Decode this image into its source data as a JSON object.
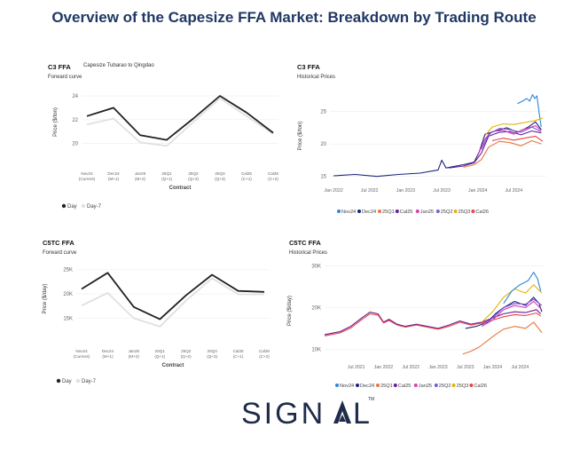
{
  "page_title": "Overview of the Capesize FFA Market: Breakdown by Trading Route",
  "logo": {
    "text": "SIGN",
    "text2": "L",
    "trademark": "TM"
  },
  "colors": {
    "title": "#1f3864",
    "day": "#222222",
    "day7": "#e0e0e0",
    "Nov24": "#2f86d9",
    "Dec24": "#1a237e",
    "25Q1": "#e8763a",
    "Cal25": "#6a1b9a",
    "Jan25": "#d63fb5",
    "25Q2": "#7b5ad6",
    "25Q3": "#e0b400",
    "Cal26": "#e64545"
  },
  "chart_data": [
    {
      "id": "c3-forward",
      "type": "line",
      "title": "C3 FFA",
      "subtitle": "Forward curve",
      "annotation": "Capesize Tubarao to Qingdao",
      "xlabel": "Contract",
      "ylabel": "Price ($/ton)",
      "ylim": [
        19,
        24.6
      ],
      "yticks": [
        20,
        22,
        24
      ],
      "ytick_labels": [
        "20",
        "22",
        "24"
      ],
      "categories": [
        "Nov24 (Current)",
        "Dec24 (M+1)",
        "Jan25 (M+2)",
        "25Q1 (Q+1)",
        "25Q2 (Q+2)",
        "25Q3 (Q+3)",
        "Cal25 (C+1)",
        "Cal26 (C+2)"
      ],
      "cat_line1": [
        "Nov24",
        "Dec24",
        "Jan25",
        "25Q1",
        "25Q2",
        "25Q3",
        "Cal25",
        "Cal26"
      ],
      "cat_line2": [
        "(Current)",
        "(M+1)",
        "(M+2)",
        "(Q+1)",
        "(Q+2)",
        "(Q+3)",
        "(C+1)",
        "(C+2)"
      ],
      "series": [
        {
          "name": "Day",
          "values": [
            22.3,
            23.0,
            20.7,
            20.3,
            22.1,
            24.0,
            22.6,
            20.9
          ]
        },
        {
          "name": "Day-7",
          "values": [
            21.6,
            22.1,
            20.1,
            19.8,
            21.8,
            23.8,
            22.3,
            20.8
          ]
        }
      ],
      "legend": [
        "Day",
        "Day-7"
      ]
    },
    {
      "id": "c3-hist",
      "type": "line",
      "title": "C3 FFA",
      "subtitle": "Historical Prices",
      "xlabel": "",
      "ylabel": "Price ($/ton)",
      "xlim": [
        2021.95,
        2024.95
      ],
      "ylim": [
        14,
        28.5
      ],
      "yticks": [
        15,
        20,
        25
      ],
      "ytick_labels": [
        "15",
        "20",
        "25"
      ],
      "xticks": [
        2022.0,
        2022.5,
        2023.0,
        2023.5,
        2024.0,
        2024.5
      ],
      "xtick_labels": [
        "Jan 2022",
        "Jul 2022",
        "Jan 2023",
        "Jul 2023",
        "Jan 2024",
        "Jul 2024"
      ],
      "series": [
        {
          "name": "Nov24",
          "x": [
            2024.55,
            2024.62,
            2024.68,
            2024.72,
            2024.76,
            2024.79,
            2024.82,
            2024.85,
            2024.88
          ],
          "values": [
            26.2,
            26.6,
            27.0,
            26.6,
            27.6,
            27.0,
            27.4,
            24.8,
            22.6
          ]
        },
        {
          "name": "Dec24",
          "x": [
            2022.0,
            2022.3,
            2022.6,
            2022.9,
            2023.2,
            2023.45,
            2023.5,
            2023.56,
            2023.8,
            2023.95,
            2024.02,
            2024.1,
            2024.25,
            2024.4,
            2024.55,
            2024.7,
            2024.8,
            2024.88
          ],
          "values": [
            15.1,
            15.3,
            15.0,
            15.3,
            15.5,
            16.0,
            17.5,
            16.3,
            16.8,
            17.2,
            18.8,
            21.5,
            22.0,
            22.5,
            21.8,
            22.6,
            23.4,
            22.2
          ]
        },
        {
          "name": "25Q1",
          "x": [
            2023.8,
            2023.95,
            2024.05,
            2024.15,
            2024.3,
            2024.45,
            2024.6,
            2024.75,
            2024.88
          ],
          "values": [
            16.4,
            16.8,
            17.6,
            19.5,
            20.4,
            20.2,
            19.7,
            20.5,
            20.0
          ]
        },
        {
          "name": "Cal25",
          "x": [
            2023.6,
            2023.8,
            2023.95,
            2024.05,
            2024.15,
            2024.3,
            2024.45,
            2024.6,
            2024.75,
            2024.88
          ],
          "values": [
            16.3,
            16.6,
            17.1,
            18.6,
            21.2,
            21.8,
            21.9,
            21.4,
            22.0,
            21.7
          ]
        },
        {
          "name": "Jan25",
          "x": [
            2024.0,
            2024.1,
            2024.2,
            2024.35,
            2024.5,
            2024.65,
            2024.8,
            2024.88
          ],
          "values": [
            18.2,
            20.8,
            21.9,
            22.1,
            21.5,
            22.3,
            22.8,
            22.1
          ]
        },
        {
          "name": "25Q2",
          "x": [
            2024.05,
            2024.15,
            2024.3,
            2024.45,
            2024.6,
            2024.75,
            2024.88
          ],
          "values": [
            19.2,
            21.5,
            22.4,
            22.2,
            21.8,
            22.6,
            21.9
          ]
        },
        {
          "name": "25Q3",
          "x": [
            2024.1,
            2024.2,
            2024.35,
            2024.5,
            2024.65,
            2024.8,
            2024.9
          ],
          "values": [
            21.3,
            22.6,
            23.1,
            23.0,
            23.3,
            23.6,
            24.0
          ]
        },
        {
          "name": "Cal26",
          "x": [
            2024.2,
            2024.35,
            2024.5,
            2024.65,
            2024.8,
            2024.9
          ],
          "values": [
            20.5,
            20.9,
            20.6,
            20.9,
            21.2,
            20.4
          ]
        }
      ],
      "legend": [
        "Nov24",
        "Dec24",
        "25Q1",
        "Cal25",
        "Jan25",
        "25Q2",
        "25Q3",
        "Cal26"
      ]
    },
    {
      "id": "c5tc-forward",
      "type": "line",
      "title": "C5TC FFA",
      "subtitle": "Forward curve",
      "xlabel": "Contract",
      "ylabel": "Price ($/day)",
      "ylim": [
        12000,
        26000
      ],
      "yticks": [
        15000,
        20000,
        25000
      ],
      "ytick_labels": [
        "15K",
        "20K",
        "25K"
      ],
      "categories": [
        "Nov24 (Current)",
        "Dec24 (M+1)",
        "Jan25 (M+2)",
        "25Q1 (Q+1)",
        "25Q2 (Q+2)",
        "25Q3 (Q+3)",
        "Cal25 (C+1)",
        "Cal26 (C+2)"
      ],
      "cat_line1": [
        "Nov24",
        "Dec24",
        "Jan25",
        "25Q1",
        "25Q2",
        "25Q3",
        "Cal25",
        "Cal26"
      ],
      "cat_line2": [
        "(Current)",
        "(M+1)",
        "(M+2)",
        "(Q+1)",
        "(Q+2)",
        "(Q+3)",
        "(C+1)",
        "(C+2)"
      ],
      "series": [
        {
          "name": "Day",
          "values": [
            21000,
            24300,
            17300,
            14800,
            19700,
            23900,
            20600,
            20400
          ]
        },
        {
          "name": "Day-7",
          "values": [
            17600,
            20200,
            15000,
            13300,
            18600,
            23200,
            19900,
            19900
          ]
        }
      ],
      "legend": [
        "Day",
        "Day-7"
      ]
    },
    {
      "id": "c5tc-hist",
      "type": "line",
      "title": "C5TC FFA",
      "subtitle": "Historical Prices",
      "xlabel": "",
      "ylabel": "Price ($/day)",
      "xlim": [
        2020.92,
        2024.95
      ],
      "ylim": [
        7500,
        31000
      ],
      "yticks": [
        10000,
        20000,
        30000
      ],
      "ytick_labels": [
        "10K",
        "20K",
        "30K"
      ],
      "xticks": [
        2021.5,
        2022.0,
        2022.5,
        2023.0,
        2023.5,
        2024.0,
        2024.5
      ],
      "xtick_labels": [
        "Jul 2021",
        "Jan 2022",
        "Jul 2022",
        "Jan 2023",
        "Jul 2023",
        "Jan 2024",
        "Jul 2024"
      ],
      "series": [
        {
          "name": "Cal25",
          "x": [
            2020.92,
            2021.2,
            2021.4,
            2021.6,
            2021.75,
            2021.9,
            2022.0,
            2022.1,
            2022.25,
            2022.4,
            2022.6,
            2022.8,
            2023.0,
            2023.2,
            2023.4,
            2023.6,
            2023.8,
            2024.0,
            2024.2,
            2024.4,
            2024.6,
            2024.8,
            2024.88
          ],
          "values": [
            13500,
            14200,
            15500,
            17500,
            18900,
            18500,
            16500,
            17200,
            16000,
            15500,
            16000,
            15500,
            15000,
            15800,
            16800,
            16000,
            16500,
            17500,
            18500,
            19000,
            18800,
            19500,
            18500
          ]
        },
        {
          "name": "Cal26",
          "x": [
            2020.92,
            2021.2,
            2021.4,
            2021.6,
            2021.75,
            2021.9,
            2022.0,
            2022.1,
            2022.25,
            2022.4,
            2022.6,
            2022.8,
            2023.0,
            2023.2,
            2023.4,
            2023.6,
            2023.8,
            2024.0,
            2024.2,
            2024.4,
            2024.6,
            2024.8,
            2024.88
          ],
          "values": [
            13200,
            13900,
            15100,
            17100,
            18500,
            18200,
            16300,
            16900,
            15800,
            15300,
            15800,
            15300,
            14800,
            15500,
            16500,
            15800,
            16300,
            17000,
            17800,
            18300,
            18100,
            18700,
            18000
          ]
        },
        {
          "name": "Dec24",
          "x": [
            2023.5,
            2023.7,
            2023.9,
            2024.05,
            2024.2,
            2024.4,
            2024.6,
            2024.75,
            2024.85,
            2024.9
          ],
          "values": [
            15000,
            15500,
            16500,
            18500,
            20000,
            21500,
            20500,
            22500,
            21000,
            19000
          ]
        },
        {
          "name": "Jan25",
          "x": [
            2023.8,
            2024.0,
            2024.2,
            2024.4,
            2024.6,
            2024.75,
            2024.9
          ],
          "values": [
            15500,
            17000,
            19500,
            20500,
            20000,
            21500,
            19500
          ]
        },
        {
          "name": "25Q2",
          "x": [
            2023.8,
            2024.0,
            2024.2,
            2024.4,
            2024.6,
            2024.75,
            2024.9
          ],
          "values": [
            15800,
            17500,
            20000,
            21000,
            20800,
            22000,
            20500
          ]
        },
        {
          "name": "25Q3",
          "x": [
            2023.8,
            2024.0,
            2024.2,
            2024.4,
            2024.6,
            2024.75,
            2024.9
          ],
          "values": [
            16500,
            19000,
            22500,
            24500,
            23500,
            25500,
            23500
          ]
        },
        {
          "name": "Nov24",
          "x": [
            2024.2,
            2024.35,
            2024.5,
            2024.65,
            2024.75,
            2024.82,
            2024.88
          ],
          "values": [
            21000,
            24000,
            25500,
            26500,
            28500,
            27000,
            24000
          ]
        },
        {
          "name": "25Q1",
          "x": [
            2023.45,
            2023.6,
            2023.75,
            2023.9,
            2024.05,
            2024.2,
            2024.4,
            2024.6,
            2024.75,
            2024.9
          ],
          "values": [
            8800,
            9500,
            10500,
            12000,
            13500,
            14800,
            15500,
            15000,
            16500,
            14000
          ]
        }
      ],
      "legend": [
        "Nov24",
        "Dec24",
        "25Q1",
        "Cal25",
        "Jan25",
        "25Q2",
        "25Q3",
        "Cal26"
      ]
    }
  ]
}
